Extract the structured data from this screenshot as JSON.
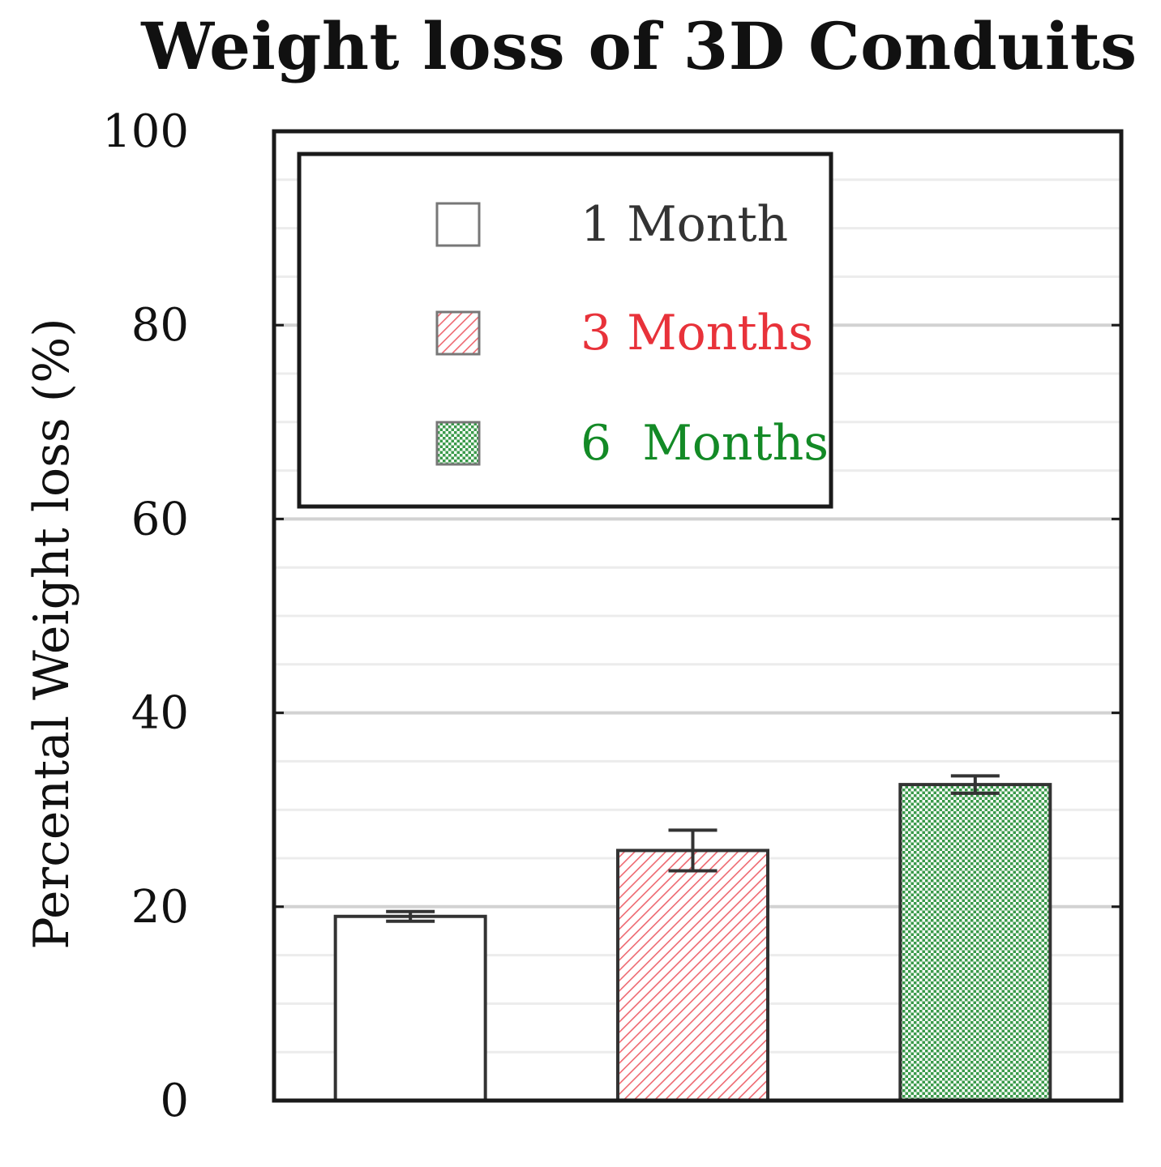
{
  "chart_data": {
    "type": "bar",
    "title": "Weight loss of 3D Conduits",
    "xlabel": "",
    "ylabel": "Percental Weight loss (%)",
    "ylim": [
      0,
      100
    ],
    "yticks": [
      "0",
      "20",
      "40",
      "60",
      "80",
      "100"
    ],
    "grid": true,
    "legend_position": "top-left",
    "categories": [
      "1 Month",
      "3 Months",
      "6  Months"
    ],
    "values": [
      19,
      25.8,
      32.6
    ],
    "errors": [
      0.5,
      2.1,
      0.9
    ],
    "patterns": [
      "none",
      "diagonal-hatch",
      "checker"
    ],
    "colors": [
      "#333333",
      "#e8323a",
      "#138a26"
    ]
  }
}
